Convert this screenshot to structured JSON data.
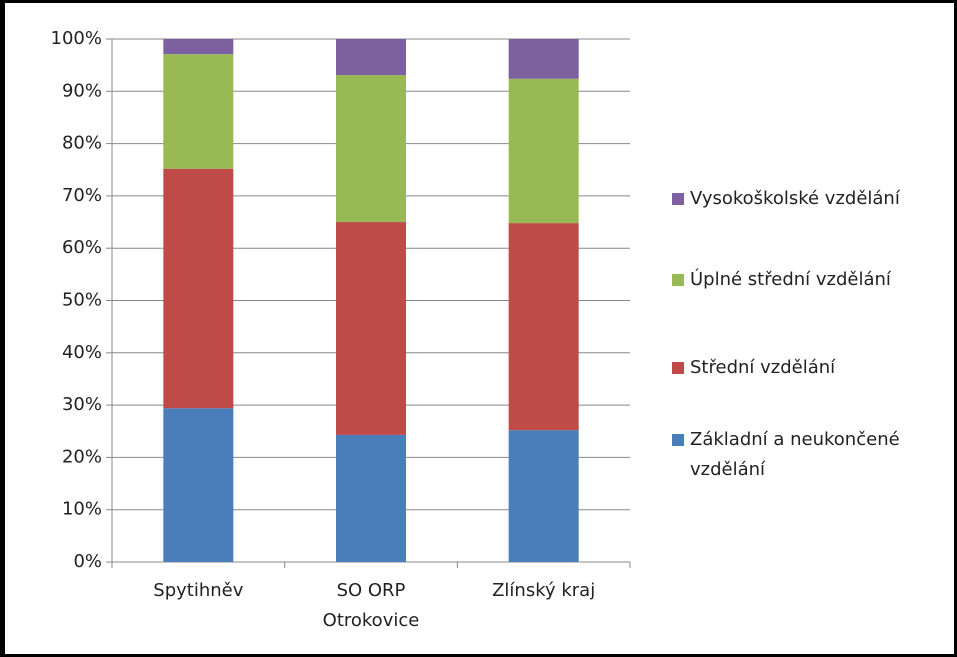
{
  "chart_data": {
    "type": "stacked_bar",
    "categories": [
      "Spytihněv",
      "SO ORP Otrokovice",
      "Zlínský kraj"
    ],
    "series": [
      {
        "name": "Základní a neukončené vzdělání",
        "color": "#4a7ebb",
        "values": [
          29.4,
          24.3,
          25.2
        ]
      },
      {
        "name": "Střední vzdělání",
        "color": "#be4b48",
        "values": [
          45.8,
          40.7,
          39.6
        ]
      },
      {
        "name": "Úplné střední vzdělání",
        "color": "#98b954",
        "values": [
          21.9,
          28.1,
          27.6
        ]
      },
      {
        "name": "Vysokoškolské vzdělání",
        "color": "#7d60a0",
        "values": [
          2.9,
          6.9,
          7.6
        ]
      }
    ],
    "ylim": [
      0,
      100
    ],
    "yticks": [
      {
        "value": 0,
        "label": "0%"
      },
      {
        "value": 10,
        "label": "10%"
      },
      {
        "value": 20,
        "label": "20%"
      },
      {
        "value": 30,
        "label": "30%"
      },
      {
        "value": 40,
        "label": "40%"
      },
      {
        "value": 50,
        "label": "50%"
      },
      {
        "value": 60,
        "label": "60%"
      },
      {
        "value": 70,
        "label": "70%"
      },
      {
        "value": 80,
        "label": "80%"
      },
      {
        "value": 90,
        "label": "90%"
      },
      {
        "value": 100,
        "label": "100%"
      }
    ],
    "grid": true,
    "legend": "right"
  }
}
